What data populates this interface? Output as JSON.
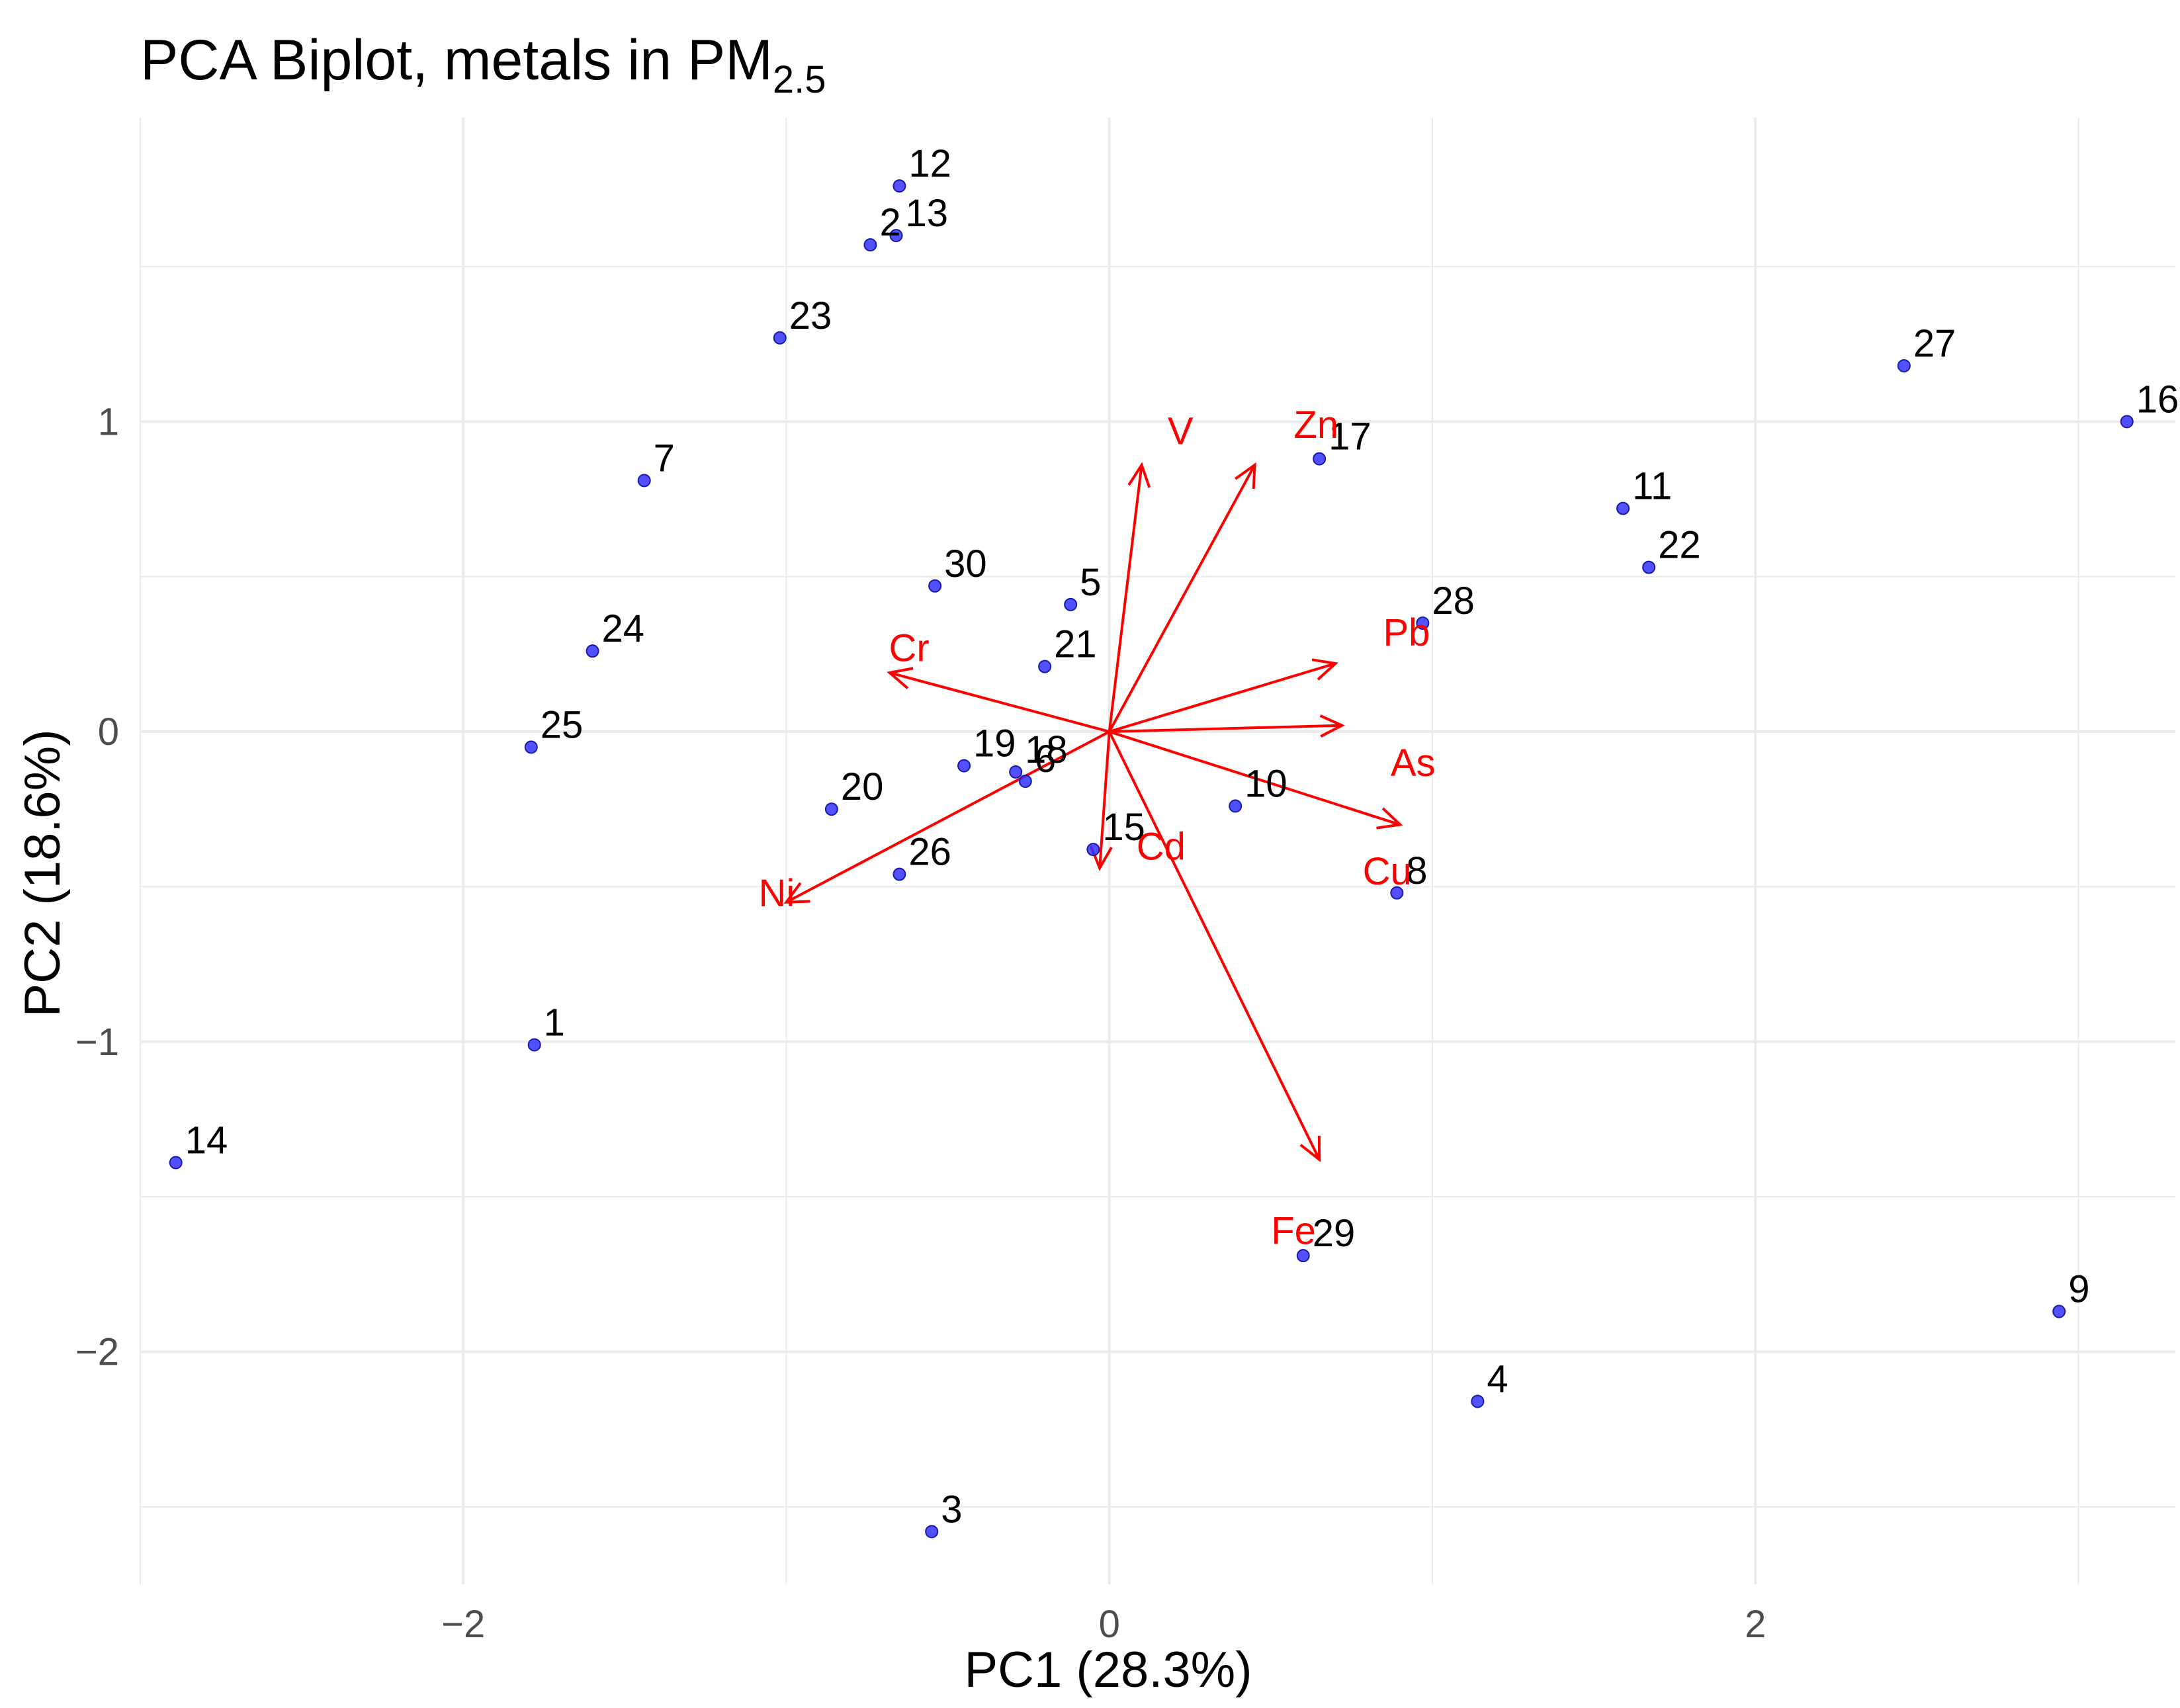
{
  "chart_data": {
    "type": "scatter",
    "title": "PCA Biplot, metals in PM",
    "title_subscript": "2.5",
    "xlabel": "PC1 (28.3%)",
    "ylabel": "PC2 (18.6%)",
    "xlim": [
      -3.0,
      3.3
    ],
    "ylim": [
      -2.75,
      1.98
    ],
    "x_ticks": [
      -2,
      0,
      2
    ],
    "x_tick_labels": [
      "−2",
      "0",
      "2"
    ],
    "y_ticks": [
      -2,
      -1,
      0,
      1
    ],
    "y_tick_labels": [
      "−2",
      "−1",
      "0",
      "1"
    ],
    "grid": true,
    "point_color": "#3333ff",
    "loading_color": "#ff0000",
    "points": [
      {
        "label": "1",
        "x": -1.78,
        "y": -1.01
      },
      {
        "label": "2",
        "x": -0.74,
        "y": 1.57
      },
      {
        "label": "3",
        "x": -0.55,
        "y": -2.58
      },
      {
        "label": "4",
        "x": 1.14,
        "y": -2.16
      },
      {
        "label": "5",
        "x": -0.12,
        "y": 0.41
      },
      {
        "label": "6",
        "x": -0.26,
        "y": -0.16
      },
      {
        "label": "7",
        "x": -1.44,
        "y": 0.81
      },
      {
        "label": "8",
        "x": 0.89,
        "y": -0.52
      },
      {
        "label": "9",
        "x": 2.94,
        "y": -1.87
      },
      {
        "label": "10",
        "x": 0.39,
        "y": -0.24
      },
      {
        "label": "11",
        "x": 1.59,
        "y": 0.72
      },
      {
        "label": "12",
        "x": -0.65,
        "y": 1.76
      },
      {
        "label": "13",
        "x": -0.66,
        "y": 1.6
      },
      {
        "label": "14",
        "x": -2.89,
        "y": -1.39
      },
      {
        "label": "15",
        "x": -0.05,
        "y": -0.38
      },
      {
        "label": "16",
        "x": 3.15,
        "y": 1.0
      },
      {
        "label": "17",
        "x": 0.65,
        "y": 0.88
      },
      {
        "label": "18",
        "x": -0.29,
        "y": -0.13
      },
      {
        "label": "19",
        "x": -0.45,
        "y": -0.11
      },
      {
        "label": "20",
        "x": -0.86,
        "y": -0.25
      },
      {
        "label": "21",
        "x": -0.2,
        "y": 0.21
      },
      {
        "label": "22",
        "x": 1.67,
        "y": 0.53
      },
      {
        "label": "23",
        "x": -1.02,
        "y": 1.27
      },
      {
        "label": "24",
        "x": -1.6,
        "y": 0.26
      },
      {
        "label": "25",
        "x": -1.79,
        "y": -0.05
      },
      {
        "label": "26",
        "x": -0.65,
        "y": -0.46
      },
      {
        "label": "27",
        "x": 2.46,
        "y": 1.18
      },
      {
        "label": "28",
        "x": 0.97,
        "y": 0.35
      },
      {
        "label": "29",
        "x": 0.6,
        "y": -1.69
      },
      {
        "label": "30",
        "x": -0.54,
        "y": 0.47
      }
    ],
    "loadings": [
      {
        "name": "V",
        "x": 0.1,
        "y": 0.86,
        "label_x": 0.22,
        "label_y": 0.97
      },
      {
        "name": "Zn",
        "x": 0.45,
        "y": 0.86,
        "label_x": 0.64,
        "label_y": 0.99
      },
      {
        "name": "Pb",
        "x": 0.7,
        "y": 0.22,
        "label_x": 0.92,
        "label_y": 0.32
      },
      {
        "name": "As",
        "x": 0.72,
        "y": 0.02,
        "label_x": 0.94,
        "label_y": -0.1
      },
      {
        "name": "Cu",
        "x": 0.9,
        "y": -0.3,
        "label_x": 0.86,
        "label_y": -0.45
      },
      {
        "name": "Fe",
        "x": 0.65,
        "y": -1.38,
        "label_x": 0.57,
        "label_y": -1.61
      },
      {
        "name": "Cd",
        "x": -0.03,
        "y": -0.44,
        "label_x": 0.16,
        "label_y": -0.37
      },
      {
        "name": "Ni",
        "x": -1.0,
        "y": -0.55,
        "label_x": -1.03,
        "label_y": -0.52
      },
      {
        "name": "Cr",
        "x": -0.68,
        "y": 0.19,
        "label_x": -0.62,
        "label_y": 0.27
      }
    ]
  }
}
